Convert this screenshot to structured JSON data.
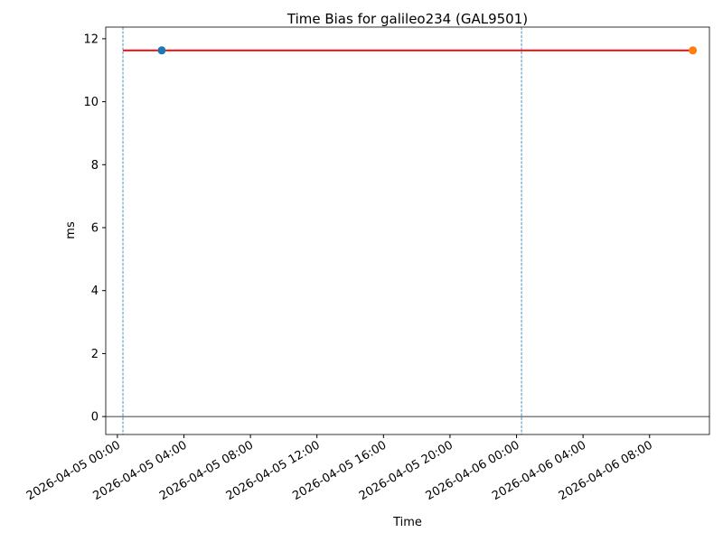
{
  "chart_data": {
    "type": "line",
    "title": "Time Bias for galileo234 (GAL9501)",
    "xlabel": "Time",
    "ylabel": "ms",
    "xlim": [
      "2026-04-04 23:18",
      "2026-04-06 11:36"
    ],
    "xticks": [
      "2026-04-05 00:00",
      "2026-04-05 04:00",
      "2026-04-05 08:00",
      "2026-04-05 12:00",
      "2026-04-05 16:00",
      "2026-04-05 20:00",
      "2026-04-06 00:00",
      "2026-04-06 04:00",
      "2026-04-06 08:00"
    ],
    "ylim": [
      -0.57,
      12.37
    ],
    "yticks": [
      0,
      2,
      4,
      6,
      8,
      10,
      12
    ],
    "hline": 0,
    "hline_color": "#000000",
    "vlines": [
      "2026-04-05 00:20",
      "2026-04-06 00:18"
    ],
    "vline_color": "#1f77b4",
    "series": [
      {
        "style": "line",
        "color": "#ff0000",
        "x": [
          "2026-04-05 00:20",
          "2026-04-06 10:36"
        ],
        "values": [
          11.63,
          11.63
        ]
      },
      {
        "style": "point",
        "color": "#1f77b4",
        "x": [
          "2026-04-05 02:40"
        ],
        "values": [
          11.63
        ]
      },
      {
        "style": "point",
        "color": "#ff7f0e",
        "x": [
          "2026-04-06 10:36"
        ],
        "values": [
          11.63
        ]
      }
    ]
  }
}
